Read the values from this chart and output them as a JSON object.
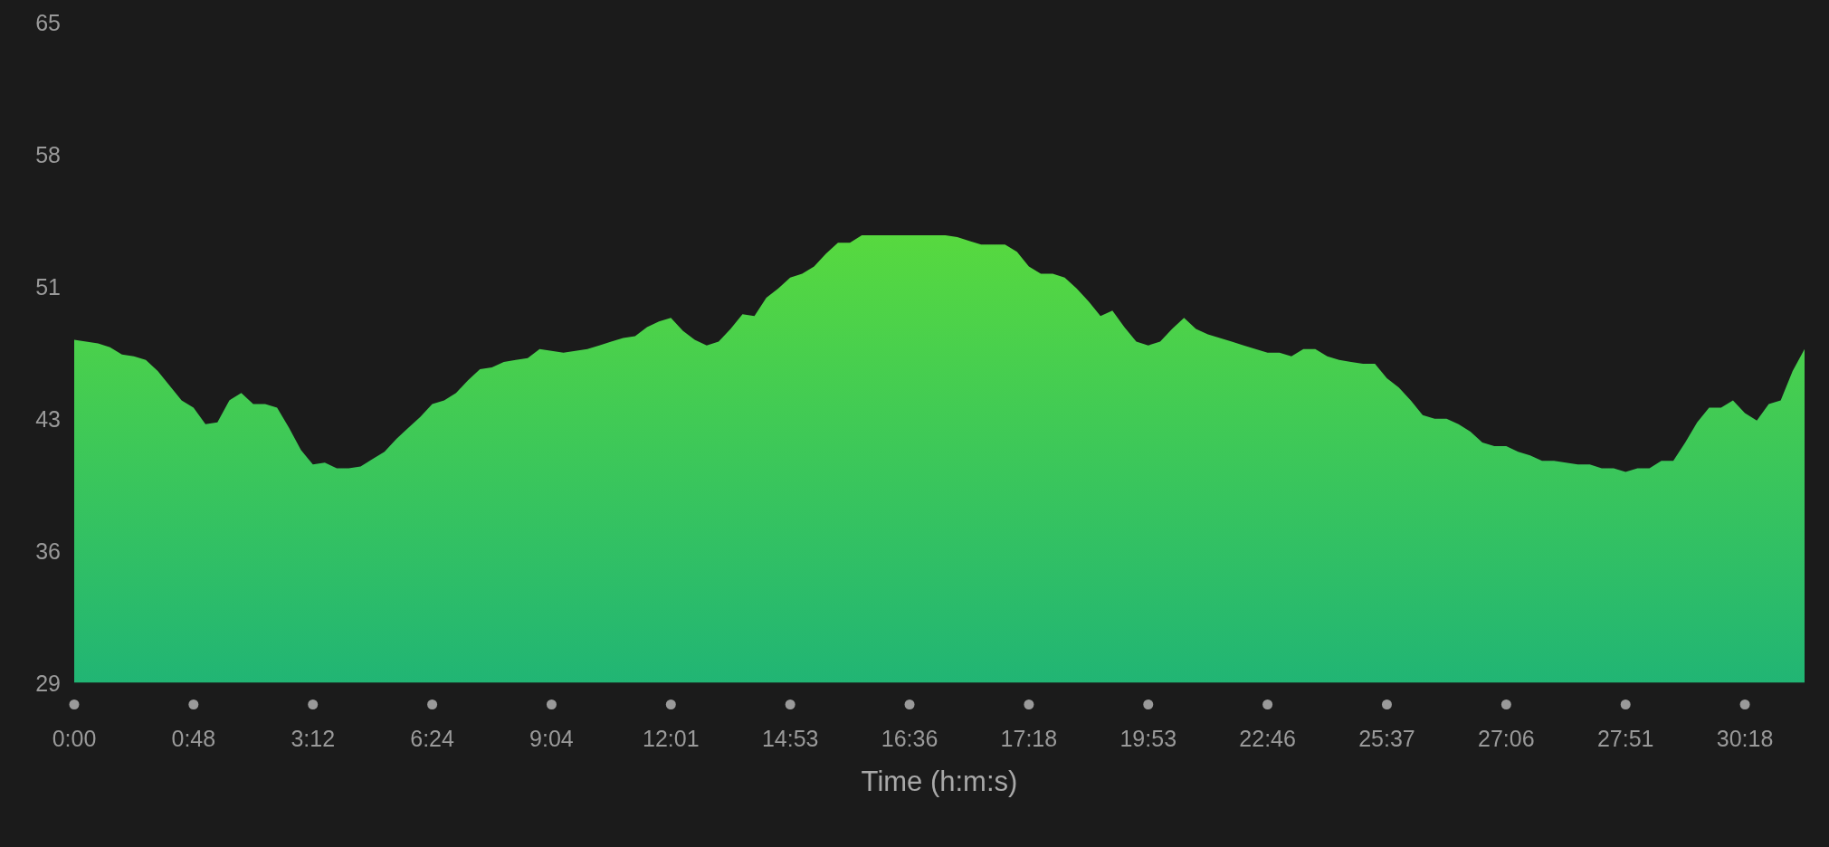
{
  "chart_data": {
    "type": "area",
    "xlabel": "Time (h:m:s)",
    "categories": [
      "0:00",
      null,
      null,
      null,
      null,
      null,
      null,
      null,
      null,
      null,
      "0:48",
      null,
      null,
      null,
      null,
      null,
      null,
      null,
      null,
      null,
      "3:12",
      null,
      null,
      null,
      null,
      null,
      null,
      null,
      null,
      null,
      "6:24",
      null,
      null,
      null,
      null,
      null,
      null,
      null,
      null,
      null,
      "9:04",
      null,
      null,
      null,
      null,
      null,
      null,
      null,
      null,
      null,
      "12:01",
      null,
      null,
      null,
      null,
      null,
      null,
      null,
      null,
      null,
      "14:53",
      null,
      null,
      null,
      null,
      null,
      null,
      null,
      null,
      null,
      "16:36",
      null,
      null,
      null,
      null,
      null,
      null,
      null,
      null,
      null,
      "17:18",
      null,
      null,
      null,
      null,
      null,
      null,
      null,
      null,
      null,
      "19:53",
      null,
      null,
      null,
      null,
      null,
      null,
      null,
      null,
      null,
      "22:46",
      null,
      null,
      null,
      null,
      null,
      null,
      null,
      null,
      null,
      "25:37",
      null,
      null,
      null,
      null,
      null,
      null,
      null,
      null,
      null,
      "27:06",
      null,
      null,
      null,
      null,
      null,
      null,
      null,
      null,
      null,
      "27:51",
      null,
      null,
      null,
      null,
      null,
      null,
      null,
      null,
      null,
      "30:18",
      null,
      null,
      null,
      null,
      null
    ],
    "values": [
      47.7,
      47.6,
      47.5,
      47.3,
      46.9,
      46.8,
      46.6,
      46.0,
      45.2,
      44.4,
      44.0,
      43.1,
      43.2,
      44.4,
      44.8,
      44.2,
      44.2,
      44.0,
      42.9,
      41.7,
      40.9,
      41.0,
      40.7,
      40.7,
      40.8,
      41.2,
      41.6,
      42.3,
      42.9,
      43.5,
      44.2,
      44.4,
      44.8,
      45.5,
      46.1,
      46.2,
      46.5,
      46.6,
      46.7,
      47.2,
      47.1,
      47.0,
      47.1,
      47.2,
      47.4,
      47.6,
      47.8,
      47.9,
      48.4,
      48.7,
      48.9,
      48.2,
      47.7,
      47.4,
      47.6,
      48.3,
      49.1,
      49.0,
      50.0,
      50.5,
      51.1,
      51.3,
      51.7,
      52.4,
      53.0,
      53.0,
      53.4,
      53.4,
      53.4,
      53.4,
      53.4,
      53.4,
      53.4,
      53.4,
      53.3,
      53.1,
      52.9,
      52.9,
      52.9,
      52.5,
      51.7,
      51.3,
      51.3,
      51.1,
      50.5,
      49.8,
      49.0,
      49.3,
      48.4,
      47.6,
      47.4,
      47.6,
      48.3,
      48.9,
      48.3,
      48.0,
      47.8,
      47.6,
      47.4,
      47.2,
      47.0,
      47.0,
      46.8,
      47.2,
      47.2,
      46.8,
      46.6,
      46.5,
      46.4,
      46.4,
      45.6,
      45.1,
      44.4,
      43.6,
      43.4,
      43.4,
      43.1,
      42.7,
      42.1,
      41.9,
      41.9,
      41.6,
      41.4,
      41.1,
      41.1,
      41.0,
      40.9,
      40.9,
      40.7,
      40.7,
      40.5,
      40.7,
      40.7,
      41.1,
      41.1,
      42.1,
      43.2,
      44.0,
      44.0,
      44.4,
      43.7,
      43.3,
      44.2,
      44.4,
      46.0,
      47.2
    ],
    "color": "#57d93f",
    "ylim": [
      29,
      65
    ],
    "yticks": [
      29,
      {
        "value": 36.2,
        "label": "36"
      },
      {
        "value": 43.4,
        "label": "43"
      },
      {
        "value": 50.6,
        "label": "51"
      },
      {
        "value": 57.8,
        "label": "58"
      },
      65
    ]
  }
}
